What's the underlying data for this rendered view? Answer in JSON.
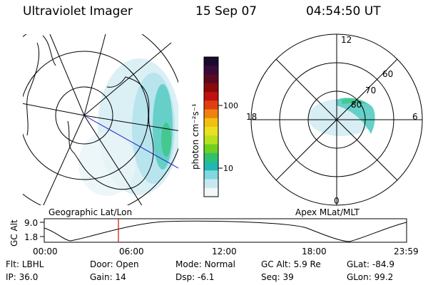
{
  "header": {
    "instrument": "Ultraviolet Imager",
    "date": "15 Sep 07",
    "time": "04:54:50 UT"
  },
  "colorbar": {
    "label": "photon cm⁻²s⁻¹",
    "ticks": [
      "100",
      "10"
    ],
    "colors": [
      "#1a0a2e",
      "#3a0a3a",
      "#5a0a20",
      "#8a0a0a",
      "#c01010",
      "#e04010",
      "#f08010",
      "#f0c010",
      "#e8e020",
      "#b8e020",
      "#70d020",
      "#30c070",
      "#20b8b0",
      "#80d8e0",
      "#c8e8f0",
      "#f0f8fa"
    ]
  },
  "left_panel": {
    "label": "Geographic Lat/Lon"
  },
  "right_panel": {
    "label": "Apex MLat/MLT",
    "mlt_labels": [
      "12",
      "18",
      "6",
      "0"
    ],
    "lat_labels": [
      "60",
      "70",
      "80"
    ]
  },
  "altitude_plot": {
    "axis_title": "GC Alt",
    "y_ticks": [
      "9.0",
      "1.8"
    ],
    "x_ticks": [
      "00:00",
      "06:00",
      "12:00",
      "18:00",
      "23:59"
    ],
    "marker_time": "04:54:50",
    "marker_color": "#d01010"
  },
  "info": {
    "row1": [
      {
        "key": "Flt:",
        "value": "LBHL"
      },
      {
        "key": "Door:",
        "value": "Open"
      },
      {
        "key": "Mode:",
        "value": "Normal"
      },
      {
        "key": "GC Alt:",
        "value": "5.9 Re"
      },
      {
        "key": "GLat:",
        "value": "-84.9"
      }
    ],
    "row2": [
      {
        "key": "IP:",
        "value": "36.0"
      },
      {
        "key": "Gain:",
        "value": "14"
      },
      {
        "key": "Dsp:",
        "value": "-6.1"
      },
      {
        "key": "Seq:",
        "value": "39"
      },
      {
        "key": "GLon:",
        "value": "99.2"
      }
    ]
  }
}
